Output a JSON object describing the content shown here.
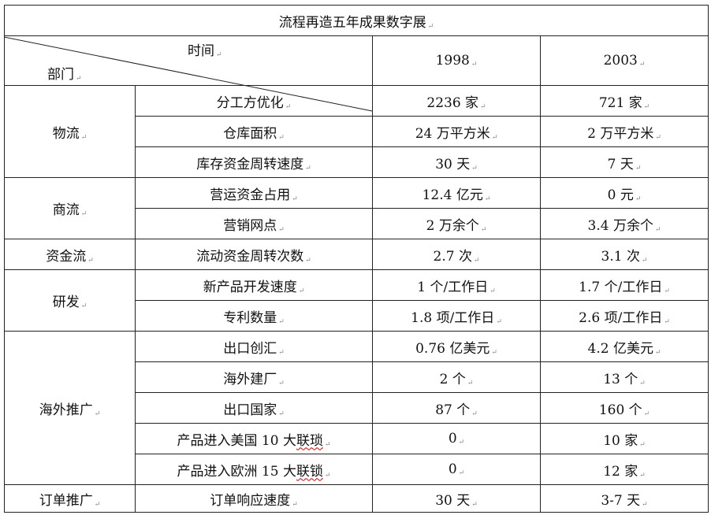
{
  "title": "流程再造五年成果数字展",
  "header": {
    "time_label": "时间",
    "dept_label": "部门",
    "years": [
      "1998",
      "2003"
    ]
  },
  "groups": [
    {
      "department": "物流",
      "rows": [
        {
          "item": "分工方优化",
          "v1998": "2236 家",
          "v2003": "721 家"
        },
        {
          "item": "仓库面积",
          "v1998": "24 万平方米",
          "v2003": "2 万平方米"
        },
        {
          "item": "库存资金周转速度",
          "v1998": "30 天",
          "v2003": "7 天"
        }
      ]
    },
    {
      "department": "商流",
      "rows": [
        {
          "item": "营运资金占用",
          "v1998": "12.4 亿元",
          "v2003": "0 元"
        },
        {
          "item": "营销网点",
          "v1998": "2 万余个",
          "v2003": "3.4 万余个"
        }
      ]
    },
    {
      "department": "资金流",
      "rows": [
        {
          "item": "流动资金周转次数",
          "v1998": "2.7 次",
          "v2003": "3.1 次"
        }
      ]
    },
    {
      "department": "研发",
      "rows": [
        {
          "item": "新产品开发速度",
          "v1998": "1 个/工作日",
          "v2003": "1.7 个/工作日"
        },
        {
          "item": "专利数量",
          "v1998": "1.8 项/工作日",
          "v2003": "2.6 项/工作日"
        }
      ]
    },
    {
      "department": "海外推广",
      "rows": [
        {
          "item": "出口创汇",
          "v1998": "0.76 亿美元",
          "v2003": "4.2 亿美元"
        },
        {
          "item": "海外建厂",
          "v1998": "2 个",
          "v2003": "13 个"
        },
        {
          "item": "出口国家",
          "v1998": "87 个",
          "v2003": "160 个"
        },
        {
          "item_prefix": "产品进入美国 10 大",
          "item_flagged": "联琐",
          "v1998": "0",
          "v2003": "10 家"
        },
        {
          "item_prefix": "产品进入欧洲 15 大",
          "item_flagged": "联锁",
          "v1998": "0",
          "v2003": "12 家"
        }
      ]
    },
    {
      "department": "订单推广",
      "rows": [
        {
          "item": "订单响应速度",
          "v1998": "30 天",
          "v2003": "3-7 天"
        }
      ]
    }
  ]
}
